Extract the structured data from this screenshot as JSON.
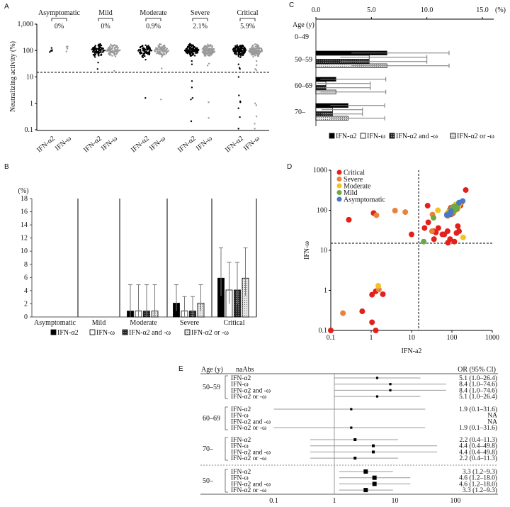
{
  "panels": {
    "a": "A",
    "b": "B",
    "c": "C",
    "d": "D",
    "e": "E"
  },
  "colors": {
    "critical": "#e3201b",
    "severe": "#e8843a",
    "moderate": "#f5c320",
    "mild": "#6aaa45",
    "asymptomatic": "#4a78c4",
    "alpha2": "#000000",
    "omega": "#9a9a9a"
  },
  "chart_data": [
    {
      "id": "A",
      "type": "scatter",
      "ylabel": "Neutralizing activity (%)",
      "yscale": "log",
      "ylim": [
        0.1,
        1000
      ],
      "yticks": [
        "1,000",
        "100",
        "10",
        "1",
        "0.1"
      ],
      "ytick_values": [
        1000,
        100,
        10,
        1,
        0.1
      ],
      "threshold": 15,
      "groups": [
        {
          "name": "Asymptomatic",
          "percent": "0%",
          "n_alpha2": 5,
          "n_omega": 4,
          "alpha2_outliers": [],
          "omega_outliers": []
        },
        {
          "name": "Mild",
          "percent": "0%",
          "n_alpha2": 80,
          "n_omega": 80,
          "alpha2_outliers": [
            35,
            20
          ],
          "omega_outliers": [
            17
          ]
        },
        {
          "name": "Moderate",
          "percent": "0.9%",
          "n_alpha2": 80,
          "n_omega": 80,
          "alpha2_outliers": [
            45,
            1.6
          ],
          "omega_outliers": [
            21,
            1.4
          ]
        },
        {
          "name": "Severe",
          "percent": "2.1%",
          "n_alpha2": 120,
          "n_omega": 120,
          "alpha2_outliers": [
            40,
            30,
            7,
            4,
            1.6,
            1.4,
            0.21
          ],
          "omega_outliers": [
            32,
            27,
            1.1,
            0.28
          ]
        },
        {
          "name": "Critical",
          "percent": "5.9%",
          "n_alpha2": 120,
          "n_omega": 120,
          "alpha2_outliers": [
            30,
            22,
            20,
            10,
            2,
            1.2,
            1.1,
            0.65,
            0.3,
            0.11
          ],
          "omega_outliers": [
            40,
            28,
            20,
            18,
            1,
            0.85,
            0.32,
            0.17,
            0.11
          ]
        }
      ],
      "series_labels": [
        "IFN-α2",
        "IFN-ω"
      ]
    },
    {
      "id": "B",
      "type": "bar",
      "ylabel": "(%)",
      "ylim": [
        0,
        18
      ],
      "yticks": [
        "0",
        "2",
        "4",
        "6",
        "8",
        "10",
        "12",
        "14",
        "16",
        "18"
      ],
      "categories": [
        "Asymptomatic",
        "Mild",
        "Moderate",
        "Severe",
        "Critical"
      ],
      "series": [
        {
          "name": "IFN-α2",
          "values": [
            0,
            0,
            0.9,
            2.1,
            5.9
          ],
          "err_low": [
            0,
            0,
            0,
            0.9,
            3.2
          ],
          "err_high": [
            0,
            0,
            4.9,
            4.9,
            10.5
          ]
        },
        {
          "name": "IFN-ω",
          "values": [
            0,
            0,
            0.9,
            0.9,
            4.1
          ],
          "err_low": [
            0,
            0,
            0,
            0,
            2.0
          ],
          "err_high": [
            0,
            0,
            4.9,
            3.1,
            8.3
          ]
        },
        {
          "name": "IFN-α2 and -ω",
          "values": [
            0,
            0,
            0.9,
            0.9,
            4.1
          ],
          "err_low": [
            0,
            0,
            0,
            0,
            2.0
          ],
          "err_high": [
            0,
            0,
            4.9,
            3.1,
            8.3
          ]
        },
        {
          "name": "IFN-α2 or -ω",
          "values": [
            0,
            0,
            0.9,
            2.1,
            5.9
          ],
          "err_low": [
            0,
            0,
            0,
            0.9,
            3.2
          ],
          "err_high": [
            0,
            0,
            4.9,
            4.9,
            10.5
          ]
        }
      ]
    },
    {
      "id": "C",
      "type": "bar",
      "orientation": "horizontal",
      "xlabel": "(%)",
      "xlim": [
        0,
        15
      ],
      "xticks": [
        "0.0",
        "5.0",
        "10.0",
        "15.0"
      ],
      "ylabel": "Age (y)",
      "categories": [
        "0–49",
        "50–59",
        "60–69",
        "70–"
      ],
      "series": [
        {
          "name": "IFN-α2",
          "values": [
            0,
            6.4,
            1.8,
            2.9
          ],
          "err_low": [
            0,
            3.2,
            0.4,
            1.3
          ],
          "err_high": [
            0,
            12.0,
            6.3,
            6.2
          ]
        },
        {
          "name": "IFN-ω",
          "values": [
            0,
            4.8,
            0.9,
            1.5
          ],
          "err_low": [
            0,
            2.2,
            0.1,
            0.5
          ],
          "err_high": [
            0,
            10.0,
            4.9,
            4.2
          ]
        },
        {
          "name": "IFN-α2 and -ω",
          "values": [
            0,
            4.8,
            0.9,
            1.5
          ],
          "err_low": [
            0,
            2.2,
            0.1,
            0.5
          ],
          "err_high": [
            0,
            10.0,
            4.9,
            4.2
          ]
        },
        {
          "name": "IFN-α2 or -ω",
          "values": [
            0,
            6.4,
            1.8,
            2.9
          ],
          "err_low": [
            0,
            3.2,
            0.4,
            1.3
          ],
          "err_high": [
            0,
            12.0,
            6.3,
            6.2
          ]
        }
      ]
    },
    {
      "id": "D",
      "type": "scatter",
      "xlabel": "IFN-a2",
      "ylabel": "IFN-ω",
      "xscale": "log",
      "yscale": "log",
      "xlim": [
        0.1,
        1000
      ],
      "ylim": [
        0.1,
        1000
      ],
      "ticks": [
        "0.1",
        "1",
        "10",
        "100",
        "1000"
      ],
      "tick_values": [
        0.1,
        1,
        10,
        100,
        1000
      ],
      "threshold": 15,
      "legend": [
        "Critical",
        "Severe",
        "Moderate",
        "Mild",
        "Asymptomatic"
      ],
      "legend_position": "top-left",
      "cluster": {
        "center": [
          110,
          105
        ],
        "n": 300
      },
      "points": [
        {
          "g": "Critical",
          "x": 0.28,
          "y": 58
        },
        {
          "g": "Critical",
          "x": 1.15,
          "y": 85
        },
        {
          "g": "Severe",
          "x": 1.35,
          "y": 75
        },
        {
          "g": "Severe",
          "x": 3.9,
          "y": 98
        },
        {
          "g": "Severe",
          "x": 7,
          "y": 90
        },
        {
          "g": "Critical",
          "x": 10,
          "y": 25
        },
        {
          "g": "Critical",
          "x": 21,
          "y": 36
        },
        {
          "g": "Critical",
          "x": 25,
          "y": 130
        },
        {
          "g": "Critical",
          "x": 26,
          "y": 50
        },
        {
          "g": "Critical",
          "x": 35,
          "y": 30
        },
        {
          "g": "Critical",
          "x": 36,
          "y": 19
        },
        {
          "g": "Critical",
          "x": 40,
          "y": 28
        },
        {
          "g": "Critical",
          "x": 46,
          "y": 36
        },
        {
          "g": "Critical",
          "x": 58,
          "y": 25
        },
        {
          "g": "Critical",
          "x": 65,
          "y": 25
        },
        {
          "g": "Critical",
          "x": 78,
          "y": 30
        },
        {
          "g": "Critical",
          "x": 80,
          "y": 15.5
        },
        {
          "g": "Critical",
          "x": 90,
          "y": 19
        },
        {
          "g": "Critical",
          "x": 115,
          "y": 16.5
        },
        {
          "g": "Critical",
          "x": 130,
          "y": 27
        },
        {
          "g": "Critical",
          "x": 140,
          "y": 40
        },
        {
          "g": "Critical",
          "x": 150,
          "y": 30
        },
        {
          "g": "Critical",
          "x": 220,
          "y": 320
        },
        {
          "g": "Severe",
          "x": 32,
          "y": 30
        },
        {
          "g": "Severe",
          "x": 33,
          "y": 78
        },
        {
          "g": "Moderate",
          "x": 190,
          "y": 21
        },
        {
          "g": "Moderate",
          "x": 45,
          "y": 100
        },
        {
          "g": "Mild",
          "x": 20,
          "y": 16.5
        },
        {
          "g": "Mild",
          "x": 35,
          "y": 65
        },
        {
          "g": "Critical",
          "x": 0.1,
          "y": 0.1
        },
        {
          "g": "Severe",
          "x": 0.2,
          "y": 0.27
        },
        {
          "g": "Critical",
          "x": 0.6,
          "y": 0.3
        },
        {
          "g": "Critical",
          "x": 1.05,
          "y": 0.16
        },
        {
          "g": "Critical",
          "x": 1.3,
          "y": 0.1
        },
        {
          "g": "Critical",
          "x": 1.05,
          "y": 0.78
        },
        {
          "g": "Critical",
          "x": 1.3,
          "y": 0.95
        },
        {
          "g": "Critical",
          "x": 1.95,
          "y": 0.8
        },
        {
          "g": "Severe",
          "x": 1.55,
          "y": 1.05
        },
        {
          "g": "Moderate",
          "x": 1.5,
          "y": 1.3
        },
        {
          "g": "Asymptomatic",
          "x": 75,
          "y": 75
        },
        {
          "g": "Asymptomatic",
          "x": 95,
          "y": 95
        },
        {
          "g": "Asymptomatic",
          "x": 150,
          "y": 155
        },
        {
          "g": "Asymptomatic",
          "x": 185,
          "y": 170
        },
        {
          "g": "Asymptomatic",
          "x": 90,
          "y": 80
        }
      ]
    },
    {
      "id": "E",
      "type": "forest",
      "headers": {
        "age": "Age (y)",
        "naabs": "naAbs",
        "or": "OR (95% CI)"
      },
      "xscale": "log",
      "xlim": [
        0.02,
        500
      ],
      "xticks": [
        "0.1",
        "1",
        "10",
        "100"
      ],
      "xtick_values": [
        0.1,
        1,
        10,
        100
      ],
      "groups": [
        {
          "age": "50–59",
          "rows": [
            {
              "label": "IFN-α2",
              "or": 5.1,
              "lo": 1.0,
              "hi": 26.4,
              "text": "5.1 (1.0–26.4)"
            },
            {
              "label": "IFN-ω",
              "or": 8.4,
              "lo": 1.0,
              "hi": 74.6,
              "text": "8.4 (1.0–74.6)"
            },
            {
              "label": "IFN-α2 and -ω",
              "or": 8.4,
              "lo": 1.0,
              "hi": 74.6,
              "text": "8.4 (1.0–74.6)"
            },
            {
              "label": "IFN-α2 or -ω",
              "or": 5.1,
              "lo": 1.0,
              "hi": 26.4,
              "text": "5.1 (1.0–26.4)"
            }
          ]
        },
        {
          "age": "60–69",
          "rows": [
            {
              "label": "IFN-α2",
              "or": 1.9,
              "lo": 0.1,
              "hi": 31.6,
              "text": "1.9 (0.1–31.6)"
            },
            {
              "label": "IFN-ω",
              "or": null,
              "lo": null,
              "hi": null,
              "text": "NA"
            },
            {
              "label": "IFN-α2 and -ω",
              "or": null,
              "lo": null,
              "hi": null,
              "text": "NA"
            },
            {
              "label": "IFN-α2 or -ω",
              "or": 1.9,
              "lo": 0.1,
              "hi": 31.6,
              "text": "1.9 (0.1–31.6)"
            }
          ]
        },
        {
          "age": "70–",
          "rows": [
            {
              "label": "IFN-α2",
              "or": 2.2,
              "lo": 0.4,
              "hi": 11.3,
              "text": "2.2 (0.4–11.3)"
            },
            {
              "label": "IFN-ω",
              "or": 4.4,
              "lo": 0.4,
              "hi": 49.8,
              "text": "4.4 (0.4–49.8)"
            },
            {
              "label": "IFN-α2 and -ω",
              "or": 4.4,
              "lo": 0.4,
              "hi": 49.8,
              "text": "4.4 (0.4–49.8)"
            },
            {
              "label": "IFN-α2 or -ω",
              "or": 2.2,
              "lo": 0.4,
              "hi": 11.3,
              "text": "2.2 (0.4–11.3)"
            }
          ]
        },
        {
          "age": "50–",
          "rows": [
            {
              "label": "IFN-α2",
              "or": 3.3,
              "lo": 1.2,
              "hi": 9.3,
              "text": "3.3 (1.2–9.3)"
            },
            {
              "label": "IFN-ω",
              "or": 4.6,
              "lo": 1.2,
              "hi": 18.0,
              "text": "4.6 (1.2–18.0)"
            },
            {
              "label": "IFN-α2 and -ω",
              "or": 4.6,
              "lo": 1.2,
              "hi": 18.0,
              "text": "4.6 (1.2–18.0)"
            },
            {
              "label": "IFN-α2 or -ω",
              "or": 3.3,
              "lo": 1.2,
              "hi": 9.3,
              "text": "3.3 (1.2–9.3)"
            }
          ]
        }
      ]
    }
  ]
}
